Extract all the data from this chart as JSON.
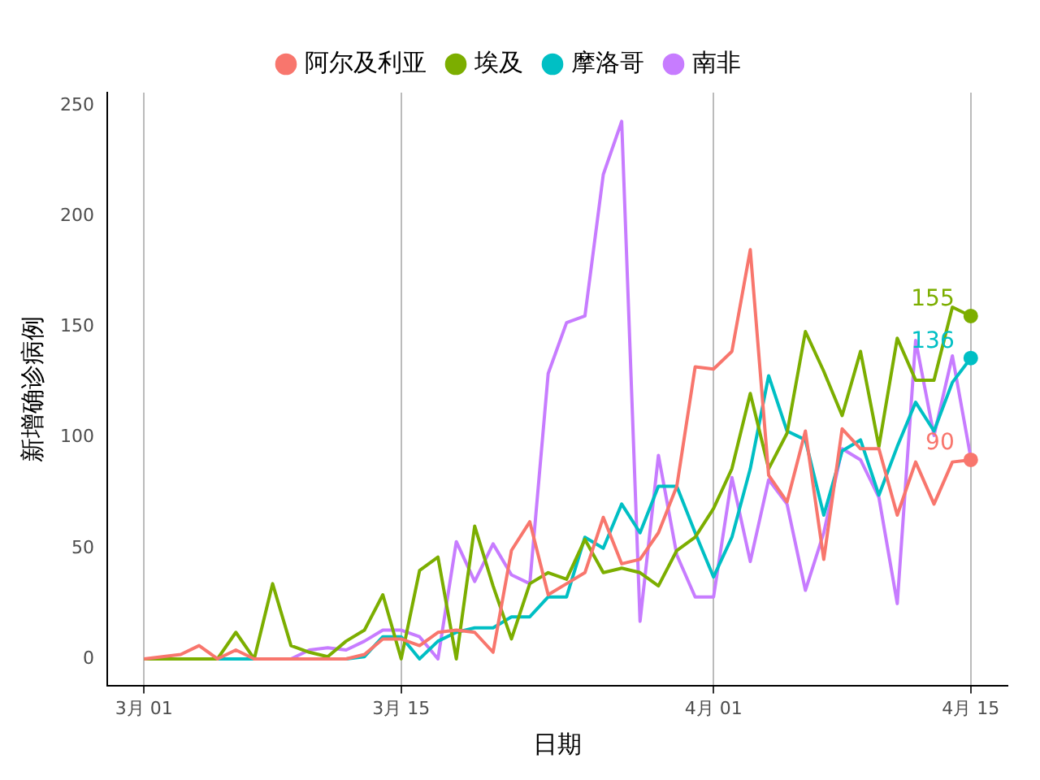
{
  "chart_data": {
    "type": "line",
    "xlabel": "日期",
    "ylabel": "新增确诊病例",
    "x": [
      "--03-01",
      "--03-02",
      "--03-03",
      "--03-04",
      "--03-05",
      "--03-06",
      "--03-07",
      "--03-08",
      "--03-09",
      "--03-10",
      "--03-11",
      "--03-12",
      "--03-13",
      "--03-14",
      "--03-15",
      "--03-16",
      "--03-17",
      "--03-18",
      "--03-19",
      "--03-20",
      "--03-21",
      "--03-22",
      "--03-23",
      "--03-24",
      "--03-25",
      "--03-26",
      "--03-27",
      "--03-28",
      "--03-29",
      "--03-30",
      "--03-31",
      "--04-01",
      "--04-02",
      "--04-03",
      "--04-04",
      "--04-05",
      "--04-06",
      "--04-07",
      "--04-08",
      "--04-09",
      "--04-10",
      "--04-11",
      "--04-12",
      "--04-13",
      "--04-14",
      "--04-15"
    ],
    "xlim": [
      "--02-27",
      "--04-17"
    ],
    "xticks": [
      {
        "value": "--03-01",
        "label": "3月 01"
      },
      {
        "value": "--03-15",
        "label": "3月 15"
      },
      {
        "value": "--04-01",
        "label": "4月 01"
      },
      {
        "value": "--04-15",
        "label": "4月 15"
      }
    ],
    "ylim": [
      -12,
      256
    ],
    "yticks": [
      0,
      50,
      100,
      150,
      200,
      250
    ],
    "grid": "x",
    "legend": "top",
    "line_style": "solid",
    "series": [
      {
        "name": "阿尔及利亚",
        "color": "#f8766d",
        "values": [
          0,
          1,
          2,
          6,
          0,
          4,
          0,
          0,
          0,
          0,
          0,
          0,
          2,
          9,
          9,
          6,
          12,
          13,
          12,
          3,
          49,
          62,
          29,
          34,
          39,
          64,
          43,
          45,
          57,
          78,
          132,
          131,
          139,
          185,
          83,
          71,
          103,
          45,
          104,
          95,
          95,
          65,
          89,
          70,
          89,
          90
        ],
        "value_labels": [
          null,
          null,
          null,
          null,
          null,
          null,
          null,
          null,
          null,
          null,
          null,
          null,
          null,
          null,
          null,
          null,
          null,
          null,
          null,
          null,
          null,
          null,
          null,
          null,
          null,
          null,
          null,
          null,
          null,
          null,
          null,
          null,
          null,
          null,
          null,
          null,
          null,
          null,
          null,
          null,
          null,
          null,
          null,
          null,
          null,
          "90"
        ]
      },
      {
        "name": "埃及",
        "color": "#7cae00",
        "values": [
          0,
          0,
          0,
          0,
          0,
          12,
          0,
          34,
          6,
          3,
          1,
          8,
          13,
          29,
          0,
          40,
          46,
          0,
          60,
          33,
          9,
          34,
          39,
          36,
          54,
          39,
          41,
          39,
          33,
          49,
          55,
          68,
          86,
          120,
          86,
          102,
          148,
          130,
          110,
          139,
          96,
          145,
          126,
          126,
          159,
          155
        ],
        "value_labels": [
          null,
          null,
          null,
          null,
          null,
          null,
          null,
          null,
          null,
          null,
          null,
          null,
          null,
          null,
          null,
          null,
          null,
          null,
          null,
          null,
          null,
          null,
          null,
          null,
          null,
          null,
          null,
          null,
          null,
          null,
          null,
          null,
          null,
          null,
          null,
          null,
          null,
          null,
          null,
          null,
          null,
          null,
          null,
          null,
          null,
          "155"
        ]
      },
      {
        "name": "摩洛哥",
        "color": "#00bfc4",
        "values": [
          null,
          null,
          null,
          0,
          0,
          0,
          0,
          0,
          0,
          0,
          0,
          0,
          1,
          10,
          10,
          0,
          8,
          12,
          14,
          14,
          19,
          19,
          28,
          28,
          55,
          50,
          70,
          57,
          78,
          78,
          57,
          37,
          55,
          86,
          128,
          103,
          99,
          65,
          94,
          99,
          74,
          96,
          116,
          103,
          125,
          136
        ],
        "value_labels": [
          null,
          null,
          null,
          null,
          null,
          null,
          null,
          null,
          null,
          null,
          null,
          null,
          null,
          null,
          null,
          null,
          null,
          null,
          null,
          null,
          null,
          null,
          null,
          null,
          null,
          null,
          null,
          null,
          null,
          null,
          null,
          null,
          null,
          null,
          null,
          null,
          null,
          null,
          null,
          null,
          null,
          null,
          null,
          null,
          null,
          "136"
        ]
      },
      {
        "name": "南非",
        "color": "#c77cff",
        "values": [
          null,
          null,
          null,
          null,
          null,
          null,
          null,
          0,
          0,
          4,
          5,
          4,
          8,
          13,
          13,
          10,
          0,
          53,
          35,
          52,
          38,
          34,
          129,
          152,
          155,
          219,
          243,
          17,
          92,
          47,
          28,
          28,
          82,
          44,
          81,
          70,
          31,
          57,
          95,
          90,
          73,
          25,
          144,
          101,
          137,
          91
        ]
      }
    ]
  }
}
